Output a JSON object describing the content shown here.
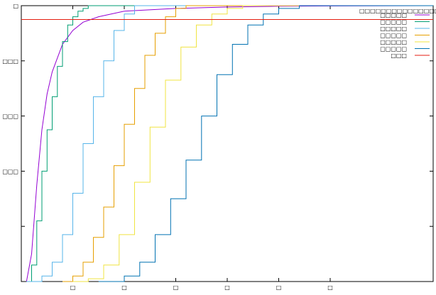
{
  "chart_data": {
    "type": "line",
    "title": "",
    "xlabel": "",
    "ylabel": "",
    "xlim": [
      0,
      8
    ],
    "ylim": [
      0,
      1
    ],
    "grid": false,
    "legend_position": "top-right",
    "legend_title": "□□□□□□□□□□□□□□□",
    "x_ticks": [
      {
        "value": 1,
        "label": "□"
      },
      {
        "value": 2,
        "label": "□"
      },
      {
        "value": 3,
        "label": "□"
      },
      {
        "value": 4,
        "label": "□"
      },
      {
        "value": 5,
        "label": "□"
      },
      {
        "value": 6,
        "label": "□"
      }
    ],
    "y_ticks": [
      {
        "value": 0.2,
        "label": ""
      },
      {
        "value": 0.4,
        "label": "□□□"
      },
      {
        "value": 0.6,
        "label": "□□□"
      },
      {
        "value": 0.8,
        "label": "□□□"
      },
      {
        "value": 1.0,
        "label": "□"
      }
    ],
    "series": [
      {
        "name": "□□□□□",
        "color": "#9400d3",
        "kind": "smooth",
        "x": [
          0.1,
          0.2,
          0.3,
          0.4,
          0.5,
          0.6,
          0.8,
          1.0,
          1.2,
          1.5,
          2.0,
          3.0,
          4.0,
          5.0,
          6.0,
          8.0
        ],
        "y": [
          0.0,
          0.1,
          0.35,
          0.55,
          0.68,
          0.76,
          0.86,
          0.91,
          0.94,
          0.96,
          0.98,
          0.99,
          0.995,
          0.998,
          0.999,
          1.0
        ]
      },
      {
        "name": "□□□□□",
        "color": "#009e73",
        "kind": "step",
        "x": [
          0.1,
          0.2,
          0.3,
          0.4,
          0.5,
          0.6,
          0.7,
          0.8,
          0.9,
          1.0,
          1.1,
          1.2,
          1.3
        ],
        "y": [
          0.0,
          0.06,
          0.22,
          0.4,
          0.55,
          0.67,
          0.78,
          0.87,
          0.93,
          0.96,
          0.98,
          0.99,
          1.0
        ]
      },
      {
        "name": "□□□□□",
        "color": "#56b4e9",
        "kind": "step",
        "x": [
          0.1,
          0.4,
          0.6,
          0.8,
          1.0,
          1.2,
          1.4,
          1.6,
          1.8,
          2.0,
          2.2
        ],
        "y": [
          0.0,
          0.02,
          0.07,
          0.17,
          0.32,
          0.5,
          0.67,
          0.8,
          0.91,
          0.97,
          1.0
        ]
      },
      {
        "name": "□□□□□",
        "color": "#e69f00",
        "kind": "step",
        "x": [
          0.8,
          1.0,
          1.2,
          1.4,
          1.6,
          1.8,
          2.0,
          2.2,
          2.4,
          2.6,
          2.8,
          3.0,
          3.2
        ],
        "y": [
          0.0,
          0.02,
          0.07,
          0.16,
          0.27,
          0.42,
          0.57,
          0.7,
          0.82,
          0.9,
          0.96,
          0.99,
          1.0
        ]
      },
      {
        "name": "□□□□□",
        "color": "#f0e442",
        "kind": "step",
        "x": [
          1.0,
          1.3,
          1.6,
          1.9,
          2.2,
          2.5,
          2.8,
          3.1,
          3.4,
          3.7,
          4.0,
          4.3
        ],
        "y": [
          0.0,
          0.01,
          0.06,
          0.17,
          0.36,
          0.56,
          0.73,
          0.85,
          0.93,
          0.97,
          0.99,
          1.0
        ]
      },
      {
        "name": "□□□□□",
        "color": "#0072b2",
        "kind": "step",
        "x": [
          1.5,
          2.0,
          2.3,
          2.6,
          2.9,
          3.2,
          3.5,
          3.8,
          4.1,
          4.4,
          4.7,
          5.0,
          5.4
        ],
        "y": [
          0.0,
          0.02,
          0.07,
          0.17,
          0.3,
          0.44,
          0.6,
          0.75,
          0.86,
          0.93,
          0.97,
          0.99,
          1.0
        ]
      },
      {
        "name": "□□□",
        "color": "#e51e10",
        "kind": "hline",
        "x": [
          0,
          8
        ],
        "y": [
          0.95,
          0.95
        ]
      }
    ]
  }
}
